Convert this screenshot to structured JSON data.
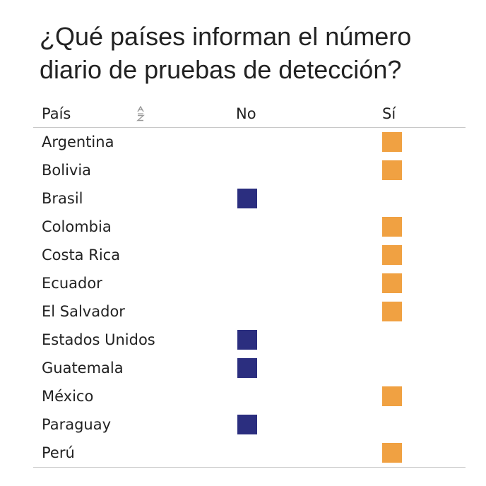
{
  "title": "¿Qué países informan el número diario de pruebas de detección?",
  "chart_data": {
    "type": "table",
    "columns": [
      "País",
      "No",
      "Sí"
    ],
    "colors": {
      "No": "#2b2e7f",
      "Sí": "#f0a142"
    },
    "sort_icon": "sort-alpha-icon",
    "rows": [
      {
        "country": "Argentina",
        "answer": "Sí"
      },
      {
        "country": "Bolivia",
        "answer": "Sí"
      },
      {
        "country": "Brasil",
        "answer": "No"
      },
      {
        "country": "Colombia",
        "answer": "Sí"
      },
      {
        "country": "Costa Rica",
        "answer": "Sí"
      },
      {
        "country": "Ecuador",
        "answer": "Sí"
      },
      {
        "country": "El Salvador",
        "answer": "Sí"
      },
      {
        "country": "Estados Unidos",
        "answer": "No"
      },
      {
        "country": "Guatemala",
        "answer": "No"
      },
      {
        "country": "México",
        "answer": "Sí"
      },
      {
        "country": "Paraguay",
        "answer": "No"
      },
      {
        "country": "Perú",
        "answer": "Sí"
      }
    ]
  }
}
